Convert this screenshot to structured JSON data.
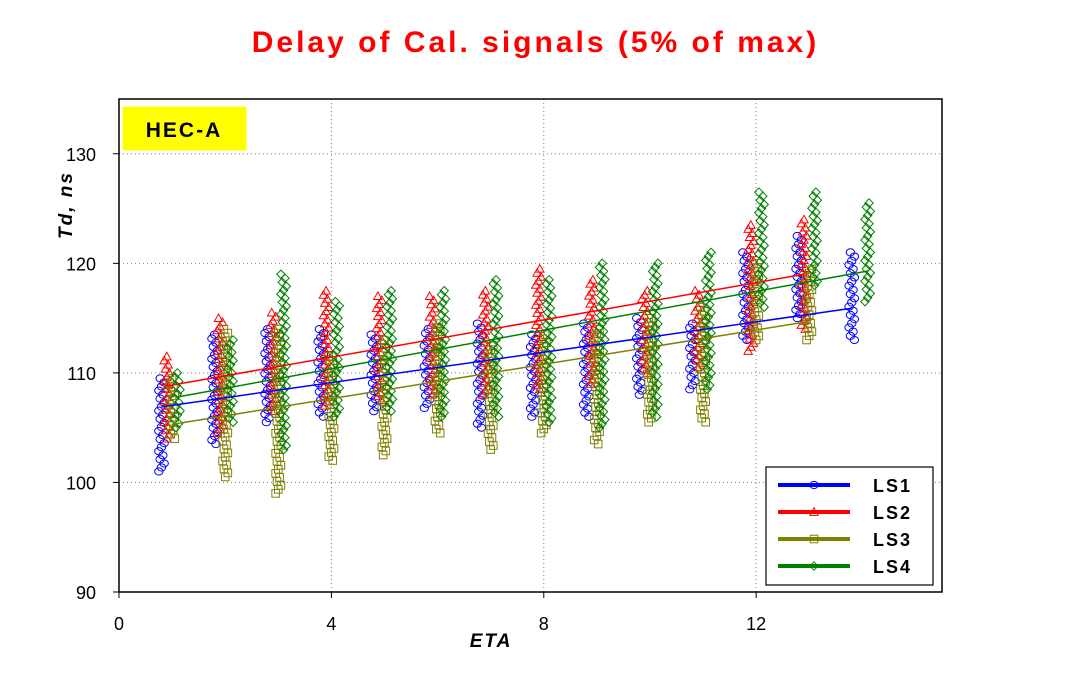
{
  "chart_data": {
    "type": "scatter",
    "title": "Delay of Cal. signals (5% of max)",
    "xlabel": "ETA",
    "ylabel": "Td, ns",
    "tag": "HEC-A",
    "xlim": [
      0,
      15.5
    ],
    "ylim": [
      90,
      135
    ],
    "xticks": [
      0,
      4,
      8,
      12
    ],
    "yticks": [
      90,
      100,
      110,
      120,
      130
    ],
    "grid": true,
    "legend_position": "bottom-right",
    "colors": {
      "LS1": "#0000ff",
      "LS2": "#ff0000",
      "LS3": "#808000",
      "LS4": "#008000",
      "tag_background": "#ffff00",
      "title": "#ff0000"
    },
    "series": [
      {
        "name": "LS1",
        "marker": "circle",
        "x": [
          0.8,
          1.8,
          2.8,
          3.8,
          4.8,
          5.8,
          6.8,
          7.8,
          8.8,
          9.8,
          10.8,
          11.8,
          12.8,
          13.8
        ],
        "ymin": [
          101,
          103.5,
          105.5,
          106,
          106.5,
          106.8,
          105,
          106,
          106,
          108,
          108.5,
          113,
          115,
          113
        ],
        "ymax": [
          109.5,
          113.5,
          114,
          114,
          113.5,
          114,
          114.5,
          113.5,
          114.5,
          115,
          114.5,
          121,
          122.5,
          121
        ],
        "fit": [
          106.9,
          115.9
        ]
      },
      {
        "name": "LS2",
        "marker": "triangle",
        "x": [
          0.9,
          1.9,
          2.9,
          3.9,
          4.9,
          5.9,
          6.9,
          7.9,
          8.9,
          9.9,
          10.9,
          11.9,
          12.9
        ],
        "ymin": [
          104,
          104.5,
          106.5,
          107,
          107.5,
          108,
          108,
          108.5,
          109,
          110,
          110.5,
          112,
          114
        ],
        "ymax": [
          111.5,
          115,
          115.5,
          117.5,
          117,
          117,
          117.5,
          119.5,
          118.5,
          117.5,
          117.5,
          123.5,
          124
        ],
        "fit": [
          108.8,
          119.0
        ]
      },
      {
        "name": "LS3",
        "marker": "square",
        "x": [
          1.0,
          2.0,
          3.0,
          4.0,
          5.0,
          6.0,
          7.0,
          8.0,
          9.0,
          10.0,
          11.0,
          12.0,
          13.0
        ],
        "ymin": [
          104,
          100.5,
          99,
          102,
          102.5,
          104.5,
          103,
          104.5,
          103.5,
          105.5,
          105.5,
          113,
          113
        ],
        "ymax": [
          109.5,
          114,
          114,
          111.5,
          113,
          114.5,
          112.5,
          113.5,
          114,
          115,
          116,
          120,
          119.5
        ],
        "fit": [
          105.3,
          114.7
        ]
      },
      {
        "name": "LS4",
        "marker": "diamond",
        "x": [
          1.1,
          2.1,
          3.1,
          4.1,
          5.1,
          6.1,
          7.1,
          8.1,
          9.1,
          10.1,
          11.1,
          12.1,
          13.1,
          14.1
        ],
        "ymin": [
          105,
          105.5,
          103,
          106,
          106.5,
          106,
          106,
          105.5,
          105,
          106,
          108.5,
          116,
          118,
          116.5
        ],
        "ymax": [
          110,
          113,
          119,
          116.5,
          117.5,
          117.5,
          118.5,
          118.5,
          120,
          120,
          121,
          126.5,
          126.5,
          125.5
        ],
        "fit": [
          107.8,
          119.3
        ]
      }
    ]
  }
}
